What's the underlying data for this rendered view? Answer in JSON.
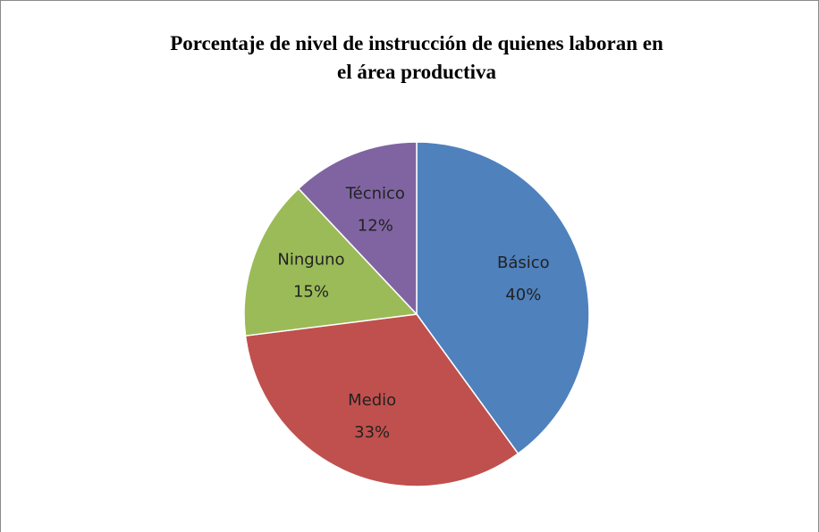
{
  "chart_data": {
    "type": "pie",
    "title": [
      "Porcentaje de nivel de instrucción de quienes laboran en",
      "el área  productiva"
    ],
    "categories": [
      "Básico",
      "Medio",
      "Ninguno",
      "Técnico"
    ],
    "values": [
      40,
      33,
      15,
      12
    ],
    "value_labels": [
      "40%",
      "33%",
      "15%",
      "12%"
    ],
    "colors": [
      "#4f81bd",
      "#c0504d",
      "#9bbb59",
      "#8064a2"
    ]
  }
}
